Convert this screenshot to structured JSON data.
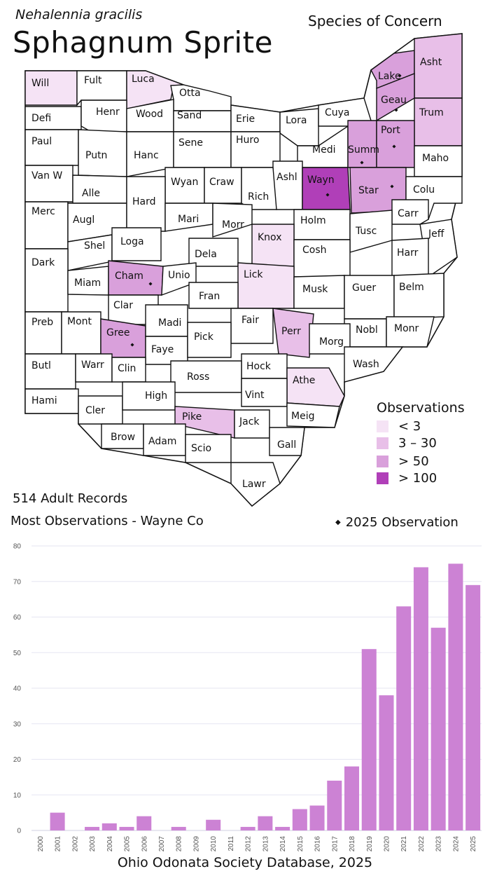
{
  "header": {
    "scientific_name": "Nehalennia gracilis",
    "common_name": "Sphagnum Sprite",
    "status": "Species of Concern"
  },
  "summary": {
    "records": "514 Adult Records",
    "most_observations": "Most Observations - Wayne Co",
    "observation_2025": "2025  Observation"
  },
  "legend": {
    "title": "Observations",
    "items": [
      {
        "label": "< 3",
        "color": "#f5e3f5"
      },
      {
        "label": "3 – 30",
        "color": "#e8bfe8"
      },
      {
        "label": "> 50",
        "color": "#d9a0db"
      },
      {
        "label": "> 100",
        "color": "#b03fb8"
      }
    ]
  },
  "map": {
    "colors": {
      "none": "#ffffff",
      "lt3": "#f5e3f5",
      "3to30": "#e8bfe8",
      "gt50": "#d9a0db",
      "gt100": "#b03fb8"
    },
    "counties": [
      {
        "label": "Will",
        "cls": "lt3"
      },
      {
        "label": "Fult",
        "cls": "none"
      },
      {
        "label": "Luca",
        "cls": "lt3"
      },
      {
        "label": "Otta",
        "cls": "none"
      },
      {
        "label": "Lake",
        "cls": "gt50",
        "obs2025": true
      },
      {
        "label": "Asht",
        "cls": "3to30"
      },
      {
        "label": "Defi",
        "cls": "none"
      },
      {
        "label": "Henr",
        "cls": "none"
      },
      {
        "label": "Wood",
        "cls": "none"
      },
      {
        "label": "Sand",
        "cls": "none"
      },
      {
        "label": "Erie",
        "cls": "none"
      },
      {
        "label": "Lora",
        "cls": "none"
      },
      {
        "label": "Cuya",
        "cls": "none"
      },
      {
        "label": "Geau",
        "cls": "gt50",
        "obs2025": true
      },
      {
        "label": "Trum",
        "cls": "3to30"
      },
      {
        "label": "Paul",
        "cls": "none"
      },
      {
        "label": "Putn",
        "cls": "none"
      },
      {
        "label": "Hanc",
        "cls": "none"
      },
      {
        "label": "Sene",
        "cls": "none"
      },
      {
        "label": "Huro",
        "cls": "none"
      },
      {
        "label": "Medi",
        "cls": "none"
      },
      {
        "label": "Summ",
        "cls": "gt50",
        "obs2025": true
      },
      {
        "label": "Port",
        "cls": "gt50",
        "obs2025": true
      },
      {
        "label": "Maho",
        "cls": "none"
      },
      {
        "label": "Van W",
        "cls": "none"
      },
      {
        "label": "Alle",
        "cls": "none"
      },
      {
        "label": "Wyan",
        "cls": "none"
      },
      {
        "label": "Craw",
        "cls": "none"
      },
      {
        "label": "Ashl",
        "cls": "none"
      },
      {
        "label": "Wayn",
        "cls": "gt100",
        "obs2025": true
      },
      {
        "label": "Star",
        "cls": "gt50",
        "obs2025": true
      },
      {
        "label": "Colu",
        "cls": "none"
      },
      {
        "label": "Merc",
        "cls": "none"
      },
      {
        "label": "Augl",
        "cls": "none"
      },
      {
        "label": "Hard",
        "cls": "none"
      },
      {
        "label": "Mari",
        "cls": "none"
      },
      {
        "label": "Rich",
        "cls": "none"
      },
      {
        "label": "Morr",
        "cls": "none"
      },
      {
        "label": "Holm",
        "cls": "none"
      },
      {
        "label": "Carr",
        "cls": "none"
      },
      {
        "label": "Tusc",
        "cls": "none"
      },
      {
        "label": "Jeff",
        "cls": "none"
      },
      {
        "label": "Shel",
        "cls": "none"
      },
      {
        "label": "Loga",
        "cls": "none"
      },
      {
        "label": "Knox",
        "cls": "lt3"
      },
      {
        "label": "Dela",
        "cls": "none"
      },
      {
        "label": "Cosh",
        "cls": "none"
      },
      {
        "label": "Harr",
        "cls": "none"
      },
      {
        "label": "Dark",
        "cls": "none"
      },
      {
        "label": "Miam",
        "cls": "none"
      },
      {
        "label": "Cham",
        "cls": "gt50",
        "obs2025": true
      },
      {
        "label": "Unio",
        "cls": "none"
      },
      {
        "label": "Lick",
        "cls": "lt3"
      },
      {
        "label": "Musk",
        "cls": "none"
      },
      {
        "label": "Guer",
        "cls": "none"
      },
      {
        "label": "Belm",
        "cls": "none"
      },
      {
        "label": "Clar",
        "cls": "none"
      },
      {
        "label": "Fran",
        "cls": "none"
      },
      {
        "label": "Preb",
        "cls": "none"
      },
      {
        "label": "Mont",
        "cls": "none"
      },
      {
        "label": "Gree",
        "cls": "gt50",
        "obs2025": true
      },
      {
        "label": "Madi",
        "cls": "none"
      },
      {
        "label": "Fair",
        "cls": "none"
      },
      {
        "label": "Perr",
        "cls": "3to30"
      },
      {
        "label": "Nobl",
        "cls": "none"
      },
      {
        "label": "Monr",
        "cls": "none"
      },
      {
        "label": "Faye",
        "cls": "none"
      },
      {
        "label": "Pick",
        "cls": "none"
      },
      {
        "label": "Morg",
        "cls": "none"
      },
      {
        "label": "Butl",
        "cls": "none"
      },
      {
        "label": "Warr",
        "cls": "none"
      },
      {
        "label": "Clin",
        "cls": "none"
      },
      {
        "label": "Hock",
        "cls": "none"
      },
      {
        "label": "Wash",
        "cls": "none"
      },
      {
        "label": "Ross",
        "cls": "none"
      },
      {
        "label": "Athe",
        "cls": "lt3"
      },
      {
        "label": "Hami",
        "cls": "none"
      },
      {
        "label": "Cler",
        "cls": "none"
      },
      {
        "label": "High",
        "cls": "none"
      },
      {
        "label": "Vint",
        "cls": "none"
      },
      {
        "label": "Meig",
        "cls": "none"
      },
      {
        "label": "Pike",
        "cls": "3to30"
      },
      {
        "label": "Brow",
        "cls": "none"
      },
      {
        "label": "Adam",
        "cls": "none"
      },
      {
        "label": "Jack",
        "cls": "none"
      },
      {
        "label": "Scio",
        "cls": "none"
      },
      {
        "label": "Gall",
        "cls": "none"
      },
      {
        "label": "Lawr",
        "cls": "none"
      }
    ]
  },
  "chart_data": {
    "type": "bar",
    "categories": [
      "2000",
      "2001",
      "2002",
      "2003",
      "2004",
      "2005",
      "2006",
      "2007",
      "2008",
      "2009",
      "2010",
      "2011",
      "2012",
      "2013",
      "2014",
      "2015",
      "2016",
      "2017",
      "2018",
      "2019",
      "2020",
      "2021",
      "2022",
      "2023",
      "2024",
      "2025"
    ],
    "values": [
      0,
      5,
      0,
      1,
      2,
      1,
      4,
      0,
      1,
      0,
      3,
      0,
      1,
      4,
      1,
      6,
      7,
      14,
      18,
      51,
      38,
      63,
      74,
      57,
      75,
      69
    ],
    "ylim": [
      0,
      80
    ],
    "yticks": [
      0,
      10,
      20,
      30,
      40,
      50,
      60,
      70,
      80
    ],
    "grid": true,
    "bar_color": "#cc82d4",
    "title": "",
    "xlabel": "",
    "ylabel": ""
  },
  "footer": {
    "source": "Ohio Odonata Society Database, 2025"
  }
}
